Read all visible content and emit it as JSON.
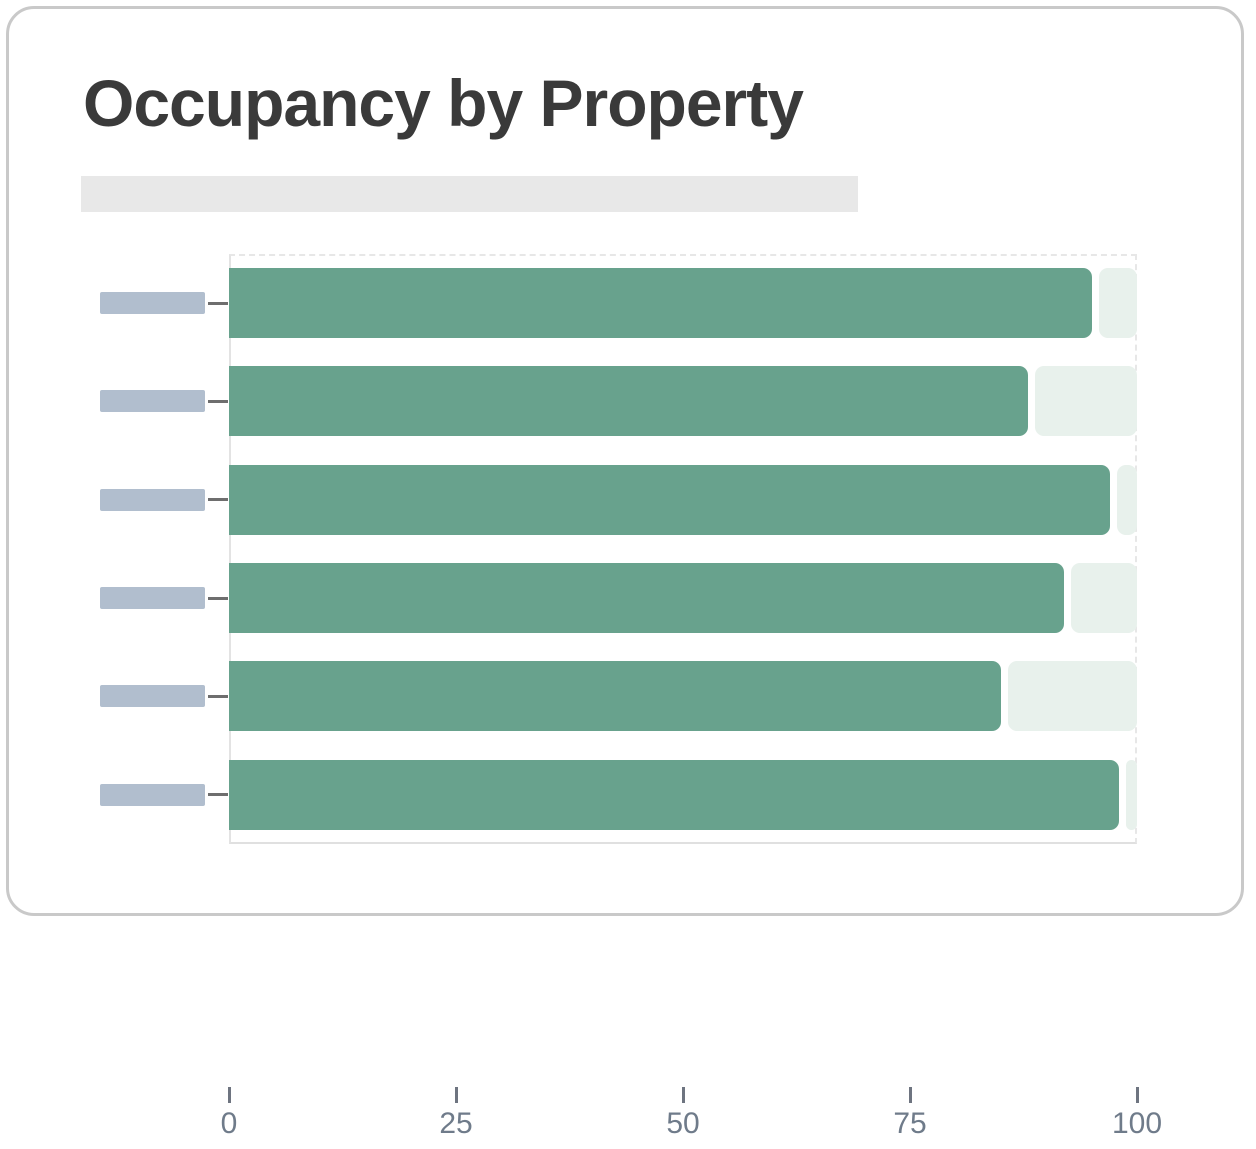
{
  "card": {
    "title": "Occupancy by Property"
  },
  "chart_data": {
    "type": "bar",
    "orientation": "horizontal",
    "title": "Occupancy by Property",
    "categories": [
      "",
      "",
      "",
      "",
      "",
      ""
    ],
    "category_labels_shown_as_skeleton_blocks": true,
    "subtitle_shown_as_skeleton_block": true,
    "values": [
      95,
      88,
      97,
      92,
      85,
      98
    ],
    "xlabel": "",
    "ylabel": "",
    "xlim": [
      0,
      100
    ],
    "x_ticks": [
      0,
      25,
      50,
      75,
      100
    ],
    "grid": false,
    "legend": false,
    "colors": {
      "bar_fill": "#68A28D",
      "bar_track": "#E8F1EC",
      "ylabel_skeleton": "#B1BECE",
      "subtitle_skeleton": "#E8E8E8",
      "tick_label": "#6F7B8A",
      "title_text": "#3A3A3A",
      "card_border": "#C9C9C9"
    }
  }
}
